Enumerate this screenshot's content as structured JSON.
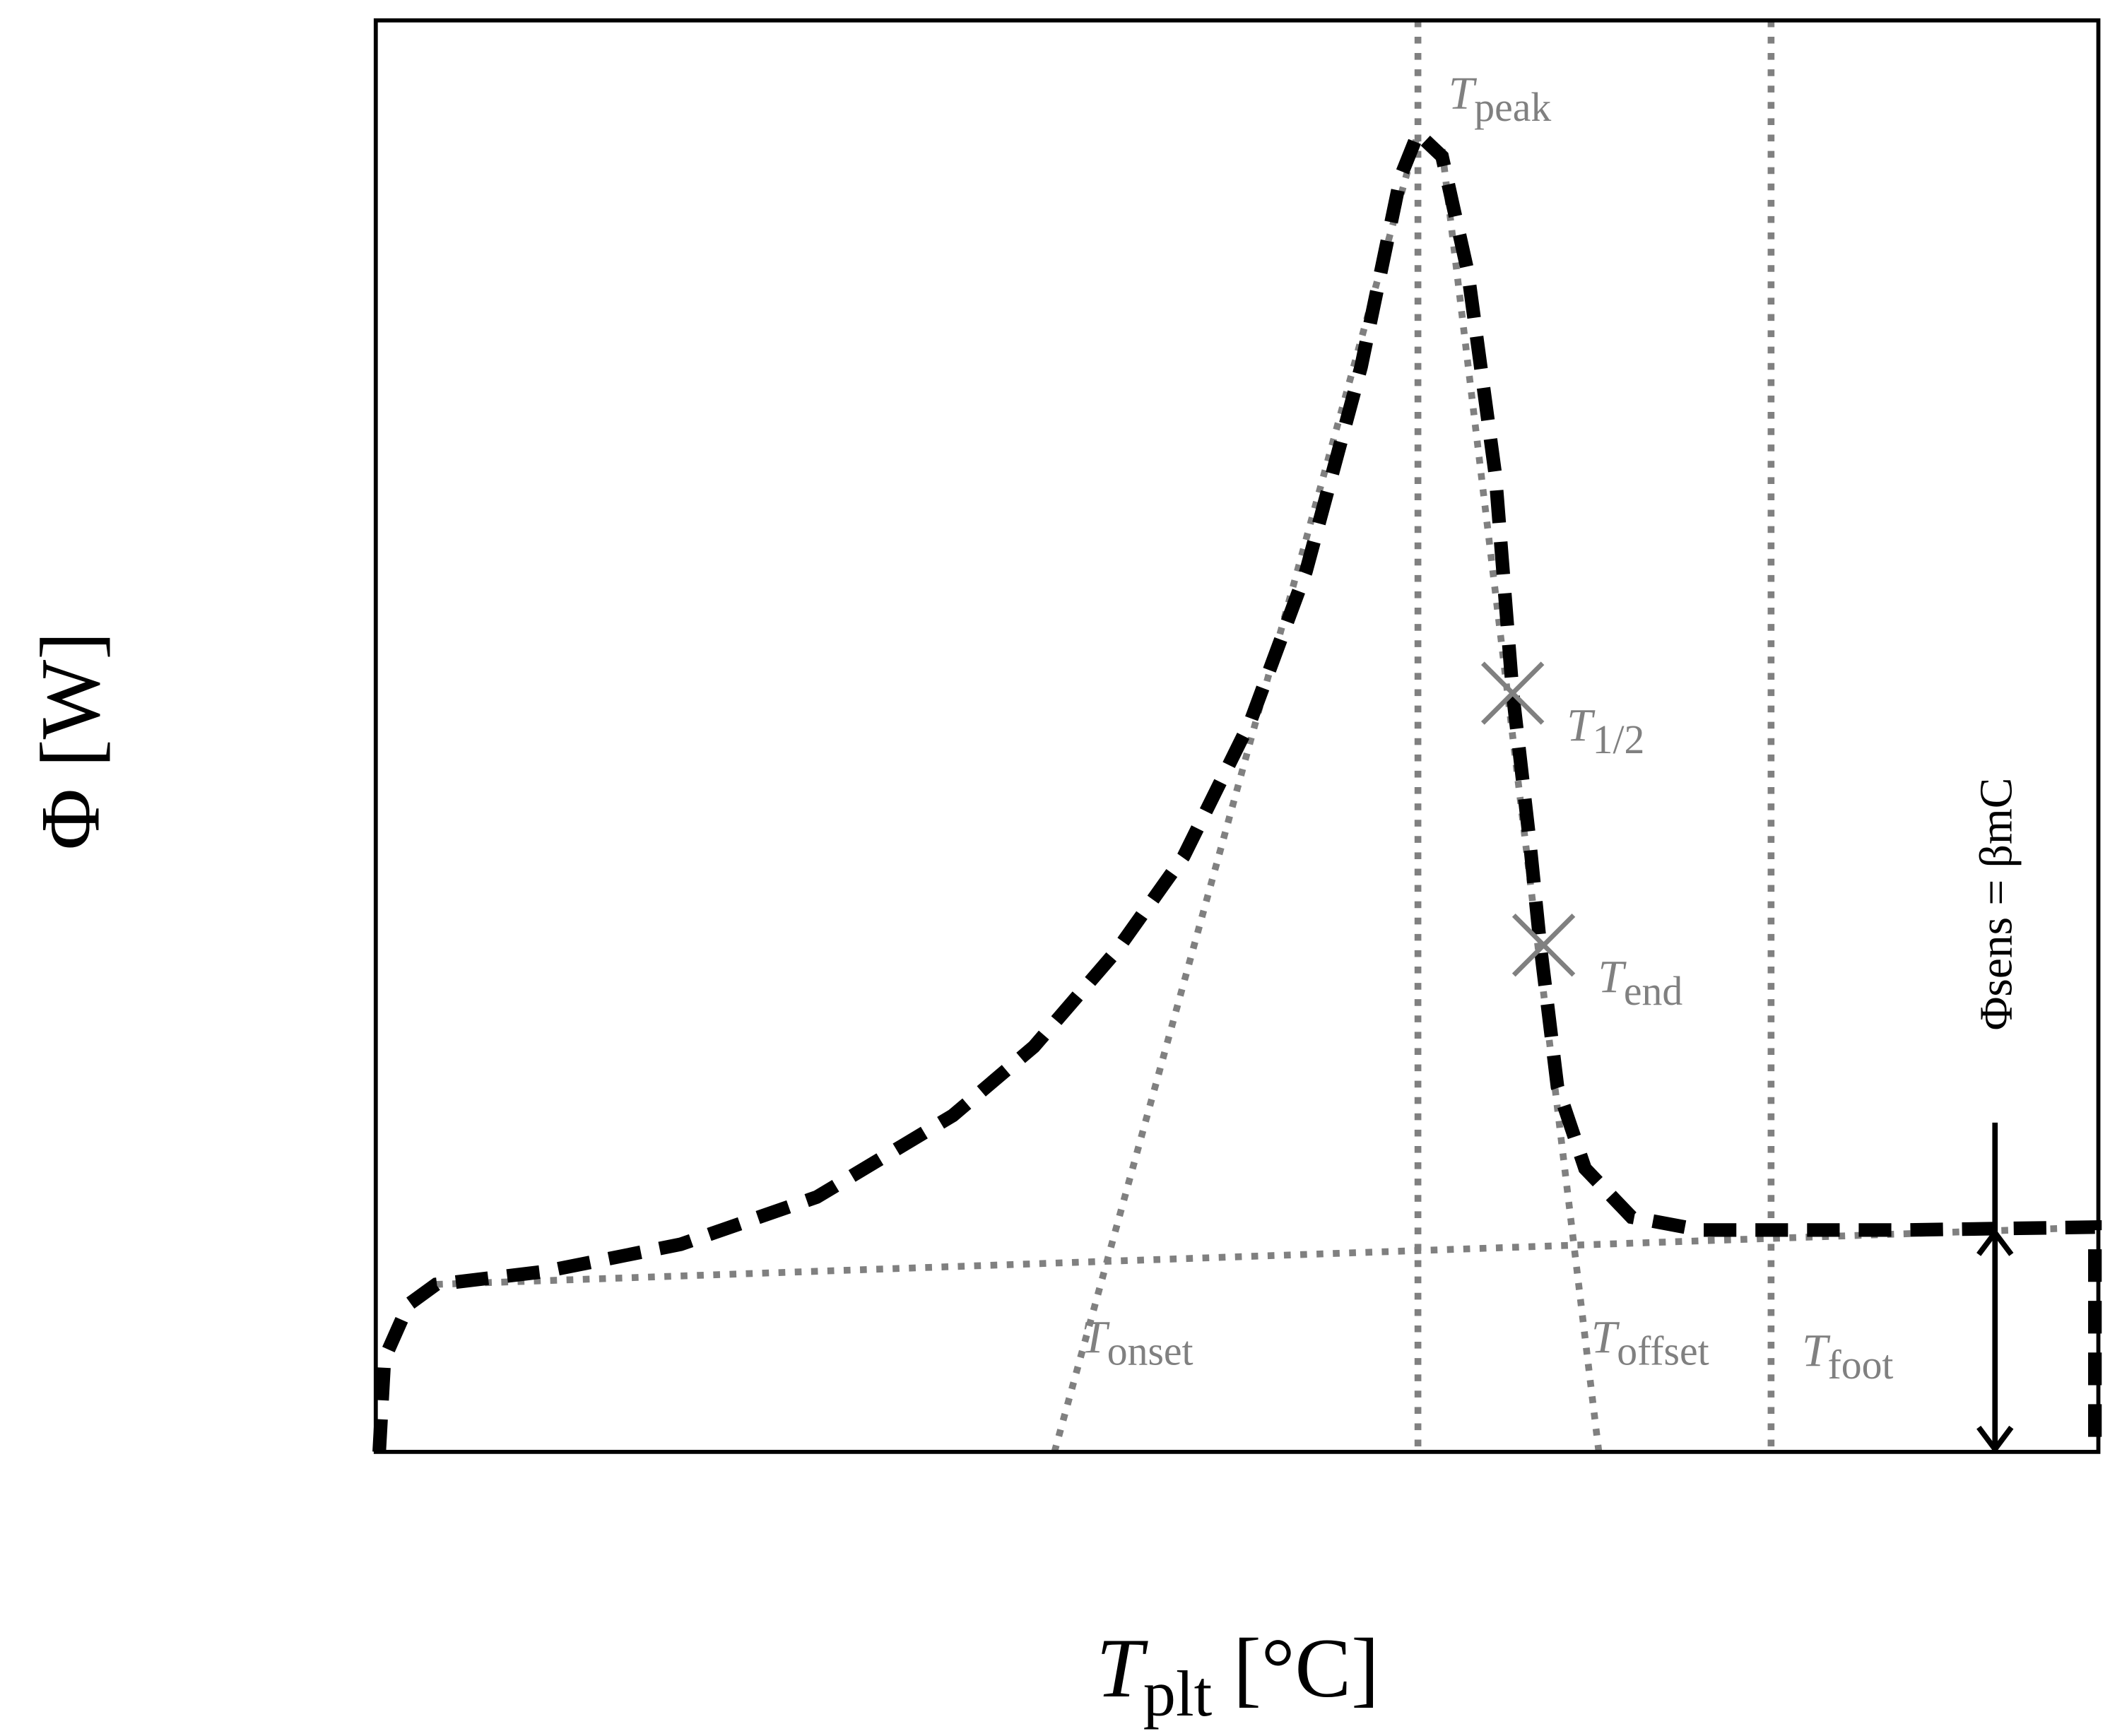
{
  "chart_data": {
    "type": "line",
    "x_label": {
      "main": "T",
      "sub": "plt",
      "rest": " [°C]"
    },
    "y_label": "Φ [W]",
    "xlim": [
      0,
      100
    ],
    "ylim": [
      0,
      100
    ],
    "color": "#000000",
    "x": [
      0.2,
      0.5,
      1.9,
      3.5,
      9.8,
      17.7,
      25.6,
      33.5,
      38.2,
      43,
      46.9,
      50.8,
      54,
      57.2,
      59.5,
      60.5,
      61.9,
      63.4,
      65,
      66,
      67,
      67.6,
      68.6,
      70.2,
      72.9,
      76.9,
      88.7,
      99.8,
      99.8
    ],
    "values": [
      0,
      6.5,
      10.3,
      11.7,
      12.6,
      14.5,
      17.8,
      23.5,
      28.3,
      35,
      41.6,
      51.1,
      61.5,
      75.8,
      89.1,
      92.1,
      90.5,
      82.4,
      68.2,
      53,
      42.5,
      35.4,
      25.5,
      19.8,
      16.4,
      15.5,
      15.5,
      15.7,
      0
    ],
    "reference_color": "#808080",
    "reference_lines": [
      {
        "x": [
          3.5,
          100
        ],
        "values": [
          11.7,
          15.7
        ]
      },
      {
        "x": [
          39.4,
          60.5
        ],
        "values": [
          0,
          92.1
        ]
      },
      {
        "x": [
          61.9,
          71
        ],
        "values": [
          91,
          0
        ]
      }
    ],
    "vlines": [
      60.5,
      81
    ],
    "markers": [
      {
        "x": 66,
        "value": 53
      },
      {
        "x": 67.8,
        "value": 35.4
      }
    ],
    "arrow": {
      "x": 94,
      "from": 0,
      "to": 15.5,
      "top": 23
    },
    "arrow_label": "Φsens = βmC",
    "annotations": [
      {
        "main": "T",
        "sub": "peak"
      },
      {
        "main": "T",
        "sub": "onset"
      },
      {
        "main": "T",
        "sub": "offset"
      },
      {
        "main": "T",
        "sub": "foot"
      },
      {
        "main": "T",
        "sub": "1/2"
      },
      {
        "main": "T",
        "sub": "end"
      }
    ]
  }
}
